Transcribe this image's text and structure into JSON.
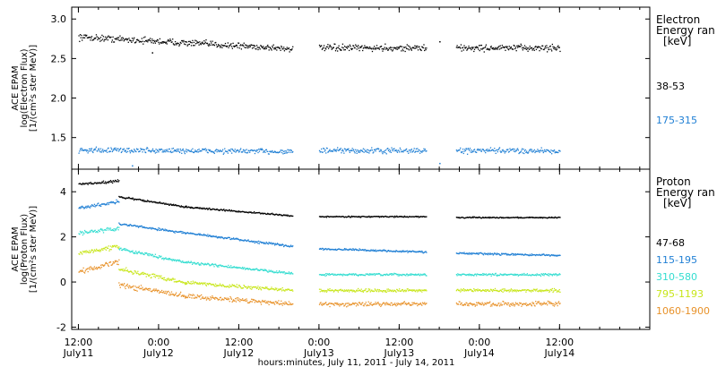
{
  "chart_data": [
    {
      "type": "scatter",
      "panel": "electron",
      "ylabel": [
        "ACE EPAM",
        "log(Electron Flux)",
        "[1/(cm²s ster MeV)]"
      ],
      "ylim": [
        1.1,
        3.15
      ],
      "yticks": [
        1.5,
        2.0,
        2.5,
        3.0
      ],
      "ytick_labels": [
        "1.5",
        "2.0",
        "2.5",
        "3.0"
      ],
      "legend_title": [
        "Electron",
        "Energy ran",
        "[keV]"
      ],
      "series": [
        {
          "name": "38-53",
          "color": "#000000",
          "segments": [
            {
              "x_start": "2011-07-11 12:00",
              "x_end": "2011-07-12 20:00",
              "y_start": 2.78,
              "y_end": 2.63,
              "scatter": 0.06
            },
            {
              "x_start": "2011-07-13 00:00",
              "x_end": "2011-07-13 16:00",
              "y_start": 2.64,
              "y_end": 2.64,
              "scatter": 0.06
            },
            {
              "x_start": "2011-07-13 20:30",
              "x_end": "2011-07-14 12:00",
              "y_start": 2.64,
              "y_end": 2.64,
              "scatter": 0.06
            }
          ],
          "outliers": [
            {
              "x": "2011-07-13 18:00",
              "y": 2.72
            },
            {
              "x": "2011-07-11 23:00",
              "y": 2.58
            }
          ]
        },
        {
          "name": "175-315",
          "color": "#1f7fd4",
          "segments": [
            {
              "x_start": "2011-07-11 12:00",
              "x_end": "2011-07-12 20:00",
              "y_start": 1.35,
              "y_end": 1.33,
              "scatter": 0.05
            },
            {
              "x_start": "2011-07-13 00:00",
              "x_end": "2011-07-13 16:00",
              "y_start": 1.34,
              "y_end": 1.34,
              "scatter": 0.05
            },
            {
              "x_start": "2011-07-13 20:30",
              "x_end": "2011-07-14 12:00",
              "y_start": 1.34,
              "y_end": 1.34,
              "scatter": 0.05
            }
          ],
          "outliers": [
            {
              "x": "2011-07-11 20:00",
              "y": 1.15
            },
            {
              "x": "2011-07-13 18:00",
              "y": 1.18
            }
          ]
        }
      ]
    },
    {
      "type": "scatter",
      "panel": "proton",
      "ylabel": [
        "ACE EPAM",
        "log(Proton Flux)",
        "[1/(cm²s ster MeV)]"
      ],
      "ylim": [
        -2.1,
        5.0
      ],
      "yticks": [
        -2,
        0,
        2,
        4
      ],
      "ytick_labels": [
        "-2",
        "0",
        "2",
        "4"
      ],
      "legend_title": [
        "Proton",
        "Energy ran",
        "[keV]"
      ],
      "series": [
        {
          "name": "47-68",
          "color": "#000000",
          "segments": [
            {
              "x_start": "2011-07-11 12:00",
              "x_end": "2011-07-11 18:00",
              "y_start": 4.35,
              "y_end": 4.5,
              "scatter": 0.08
            },
            {
              "x_start": "2011-07-11 18:00",
              "x_end": "2011-07-12 04:00",
              "y_start": 3.8,
              "y_end": 3.35,
              "scatter": 0.06
            },
            {
              "x_start": "2011-07-12 04:00",
              "x_end": "2011-07-12 20:00",
              "y_start": 3.35,
              "y_end": 2.95,
              "scatter": 0.05
            },
            {
              "x_start": "2011-07-13 00:00",
              "x_end": "2011-07-13 16:00",
              "y_start": 2.92,
              "y_end": 2.92,
              "scatter": 0.04
            },
            {
              "x_start": "2011-07-13 20:30",
              "x_end": "2011-07-14 12:00",
              "y_start": 2.88,
              "y_end": 2.88,
              "scatter": 0.04
            }
          ]
        },
        {
          "name": "115-195",
          "color": "#1f7fd4",
          "segments": [
            {
              "x_start": "2011-07-11 12:00",
              "x_end": "2011-07-11 18:00",
              "y_start": 3.3,
              "y_end": 3.6,
              "scatter": 0.1
            },
            {
              "x_start": "2011-07-11 18:00",
              "x_end": "2011-07-12 04:00",
              "y_start": 2.6,
              "y_end": 2.2,
              "scatter": 0.08
            },
            {
              "x_start": "2011-07-12 04:00",
              "x_end": "2011-07-12 20:00",
              "y_start": 2.2,
              "y_end": 1.6,
              "scatter": 0.07
            },
            {
              "x_start": "2011-07-13 00:00",
              "x_end": "2011-07-13 16:00",
              "y_start": 1.5,
              "y_end": 1.35,
              "scatter": 0.06
            },
            {
              "x_start": "2011-07-13 20:30",
              "x_end": "2011-07-14 12:00",
              "y_start": 1.3,
              "y_end": 1.2,
              "scatter": 0.06
            }
          ]
        },
        {
          "name": "310-580",
          "color": "#33ddd0",
          "segments": [
            {
              "x_start": "2011-07-11 12:00",
              "x_end": "2011-07-11 18:00",
              "y_start": 2.2,
              "y_end": 2.4,
              "scatter": 0.12
            },
            {
              "x_start": "2011-07-11 18:00",
              "x_end": "2011-07-12 04:00",
              "y_start": 1.5,
              "y_end": 0.9,
              "scatter": 0.1
            },
            {
              "x_start": "2011-07-12 04:00",
              "x_end": "2011-07-12 20:00",
              "y_start": 0.9,
              "y_end": 0.4,
              "scatter": 0.08
            },
            {
              "x_start": "2011-07-13 00:00",
              "x_end": "2011-07-13 16:00",
              "y_start": 0.35,
              "y_end": 0.35,
              "scatter": 0.07
            },
            {
              "x_start": "2011-07-13 20:30",
              "x_end": "2011-07-14 12:00",
              "y_start": 0.35,
              "y_end": 0.35,
              "scatter": 0.07
            }
          ]
        },
        {
          "name": "795-1193",
          "color": "#c8e61a",
          "segments": [
            {
              "x_start": "2011-07-11 12:00",
              "x_end": "2011-07-11 18:00",
              "y_start": 1.3,
              "y_end": 1.6,
              "scatter": 0.15
            },
            {
              "x_start": "2011-07-11 18:00",
              "x_end": "2011-07-12 04:00",
              "y_start": 0.6,
              "y_end": 0.0,
              "scatter": 0.13
            },
            {
              "x_start": "2011-07-12 04:00",
              "x_end": "2011-07-12 20:00",
              "y_start": 0.0,
              "y_end": -0.35,
              "scatter": 0.11
            },
            {
              "x_start": "2011-07-13 00:00",
              "x_end": "2011-07-13 16:00",
              "y_start": -0.35,
              "y_end": -0.35,
              "scatter": 0.1
            },
            {
              "x_start": "2011-07-13 20:30",
              "x_end": "2011-07-14 12:00",
              "y_start": -0.35,
              "y_end": -0.35,
              "scatter": 0.1
            }
          ]
        },
        {
          "name": "1060-1900",
          "color": "#e8922a",
          "segments": [
            {
              "x_start": "2011-07-11 12:00",
              "x_end": "2011-07-11 18:00",
              "y_start": 0.5,
              "y_end": 0.9,
              "scatter": 0.18
            },
            {
              "x_start": "2011-07-11 18:00",
              "x_end": "2011-07-12 04:00",
              "y_start": -0.1,
              "y_end": -0.6,
              "scatter": 0.17
            },
            {
              "x_start": "2011-07-12 04:00",
              "x_end": "2011-07-12 20:00",
              "y_start": -0.6,
              "y_end": -0.95,
              "scatter": 0.15
            },
            {
              "x_start": "2011-07-13 00:00",
              "x_end": "2011-07-13 16:00",
              "y_start": -0.95,
              "y_end": -0.95,
              "scatter": 0.15
            },
            {
              "x_start": "2011-07-13 20:30",
              "x_end": "2011-07-14 12:00",
              "y_start": -0.95,
              "y_end": -0.95,
              "scatter": 0.15
            }
          ]
        }
      ]
    }
  ],
  "x_axis": {
    "xlim": [
      "2011-07-11 11:00",
      "2011-07-15 01:30"
    ],
    "ticks": [
      {
        "x": "2011-07-11 12:00",
        "time": "12:00",
        "date": "July11"
      },
      {
        "x": "2011-07-12 00:00",
        "time": "0:00",
        "date": "July12"
      },
      {
        "x": "2011-07-12 12:00",
        "time": "12:00",
        "date": "July12"
      },
      {
        "x": "2011-07-13 00:00",
        "time": "0:00",
        "date": "July13"
      },
      {
        "x": "2011-07-13 12:00",
        "time": "12:00",
        "date": "July13"
      },
      {
        "x": "2011-07-14 00:00",
        "time": "0:00",
        "date": "July14"
      },
      {
        "x": "2011-07-14 12:00",
        "time": "12:00",
        "date": "July14"
      }
    ],
    "xlabel": "hours:minutes, July 11, 2011 - July 14, 2011"
  }
}
